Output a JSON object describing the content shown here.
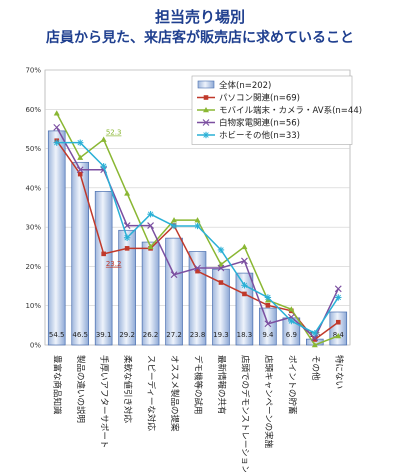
{
  "chart_data": {
    "type": "bar",
    "title": "担当売り場別",
    "subtitle": "店員から見た、来店客が販売店に求めていること",
    "categories": [
      "豊富な商品知識",
      "製品の違いの説明",
      "手厚いアフターサポート",
      "柔軟な値引き対応",
      "スピーディーな対応",
      "オススメ製品の提案",
      "デモ機等の試用",
      "最新情報の共有",
      "店頭でのデモンストレーション",
      "店頭キャンペーンの実施",
      "ポイントの貯蓄",
      "その他",
      "特にない"
    ],
    "yticks": [
      "0%",
      "10%",
      "20%",
      "30%",
      "40%",
      "50%",
      "60%",
      "70%"
    ],
    "ylim": [
      0,
      70
    ],
    "bar_series": {
      "name": "全体(n=202)",
      "values": [
        54.5,
        46.5,
        39.1,
        29.2,
        26.2,
        27.2,
        23.8,
        19.3,
        18.3,
        9.4,
        6.9,
        1.5,
        8.4
      ]
    },
    "line_series": [
      {
        "name": "パソコン関連(n=69)",
        "color": "#c0392b",
        "values": [
          52,
          43.5,
          23.2,
          24.6,
          24.6,
          30.4,
          18.8,
          15.9,
          13.0,
          10.1,
          8.7,
          1.4,
          5.8
        ]
      },
      {
        "name": "モバイル端末・カメラ・AV系(n=44)",
        "color": "#8ab733",
        "values": [
          59,
          47.7,
          52.3,
          38.6,
          25.0,
          31.8,
          31.8,
          20.5,
          25.0,
          11.4,
          9.1,
          0,
          2.3
        ]
      },
      {
        "name": "白物家電関連(n=56)",
        "color": "#7b4fa0",
        "values": [
          55.4,
          44.6,
          44.6,
          30.4,
          30.4,
          17.9,
          19.6,
          19.6,
          21.4,
          5.4,
          7.1,
          1.8,
          14.3
        ]
      },
      {
        "name": "ホビーその他(n=33)",
        "color": "#2ab0d6",
        "values": [
          51.5,
          51.5,
          45.5,
          27.3,
          33.3,
          30.3,
          30.3,
          24.2,
          15.2,
          12.1,
          6.1,
          3.0,
          12.1
        ]
      }
    ],
    "annotations": [
      {
        "text": "52.3",
        "series": 1,
        "index": 2,
        "color": "#8ab733"
      },
      {
        "text": "23.2",
        "series": 0,
        "index": 2,
        "color": "#c0392b"
      }
    ],
    "legend_position": "top-right",
    "grid": true
  }
}
